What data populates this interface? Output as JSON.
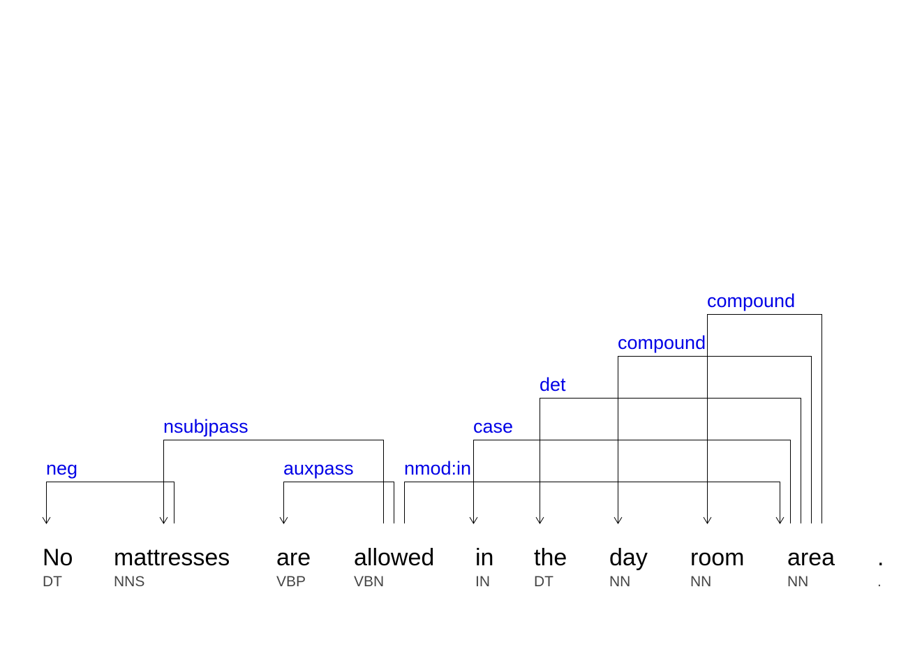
{
  "diagram": {
    "tokens": [
      {
        "word": "No",
        "tag": "DT"
      },
      {
        "word": "mattresses",
        "tag": "NNS"
      },
      {
        "word": "are",
        "tag": "VBP"
      },
      {
        "word": "allowed",
        "tag": "VBN"
      },
      {
        "word": "in",
        "tag": "IN"
      },
      {
        "word": "the",
        "tag": "DT"
      },
      {
        "word": "day",
        "tag": "NN"
      },
      {
        "word": "room",
        "tag": "NN"
      },
      {
        "word": "area",
        "tag": "NN"
      },
      {
        "word": ".",
        "tag": "."
      }
    ],
    "dependencies": [
      {
        "label": "neg",
        "head": 1,
        "dep": 0
      },
      {
        "label": "nsubjpass",
        "head": 3,
        "dep": 1
      },
      {
        "label": "auxpass",
        "head": 3,
        "dep": 2
      },
      {
        "label": "nmod:in",
        "head": 3,
        "dep": 8
      },
      {
        "label": "case",
        "head": 8,
        "dep": 4
      },
      {
        "label": "det",
        "head": 8,
        "dep": 5
      },
      {
        "label": "compound",
        "head": 8,
        "dep": 6
      },
      {
        "label": "compound",
        "head": 8,
        "dep": 7
      }
    ],
    "colors": {
      "label": "#0000e6",
      "line": "#000000",
      "word": "#000000",
      "tag": "#444444"
    }
  }
}
